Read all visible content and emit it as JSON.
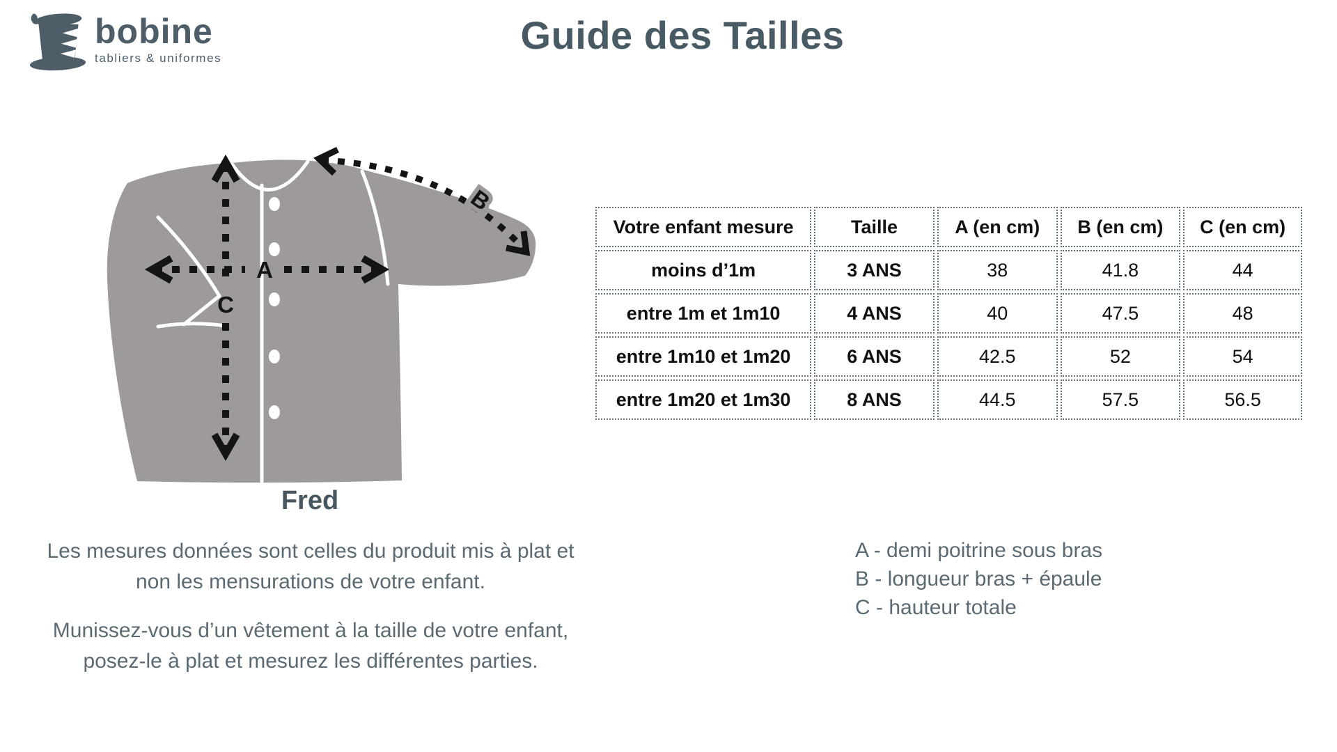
{
  "logo": {
    "brand": "bobine",
    "tagline": "tabliers & uniformes",
    "icon": "thread-spool-icon"
  },
  "title": "Guide des Tailles",
  "product": {
    "name": "Fred"
  },
  "diagram": {
    "type": "garment-measurement-diagram",
    "labels": {
      "a": "A",
      "b": "B",
      "c": "C"
    }
  },
  "size_table": {
    "headers": [
      "Votre enfant mesure",
      "Taille",
      "A (en cm)",
      "B (en cm)",
      "C (en cm)"
    ],
    "rows": [
      [
        "moins d’1m",
        "3 ANS",
        "38",
        "41.8",
        "44"
      ],
      [
        "entre 1m et 1m10",
        "4 ANS",
        "40",
        "47.5",
        "48"
      ],
      [
        "entre 1m10 et 1m20",
        "6 ANS",
        "42.5",
        "52",
        "54"
      ],
      [
        "entre 1m20 et 1m30",
        "8 ANS",
        "44.5",
        "57.5",
        "56.5"
      ]
    ]
  },
  "notes": {
    "p1_line1": "Les mesures données sont celles du produit mis à plat et",
    "p1_line2": "non les mensurations de votre enfant.",
    "p2_line1": "Munissez-vous d’un vêtement à la taille de votre enfant,",
    "p2_line2": "posez-le à plat et mesurez les différentes parties."
  },
  "legend": [
    "A - demi poitrine sous bras",
    "B - longueur bras + épaule",
    "C - hauteur totale"
  ],
  "colors": {
    "slate_dark": "#485a64",
    "slate_text": "#5b6a72",
    "jacket_gray": "#9d9a99",
    "table_border": "#5f707b",
    "arrow_black": "#141414"
  }
}
